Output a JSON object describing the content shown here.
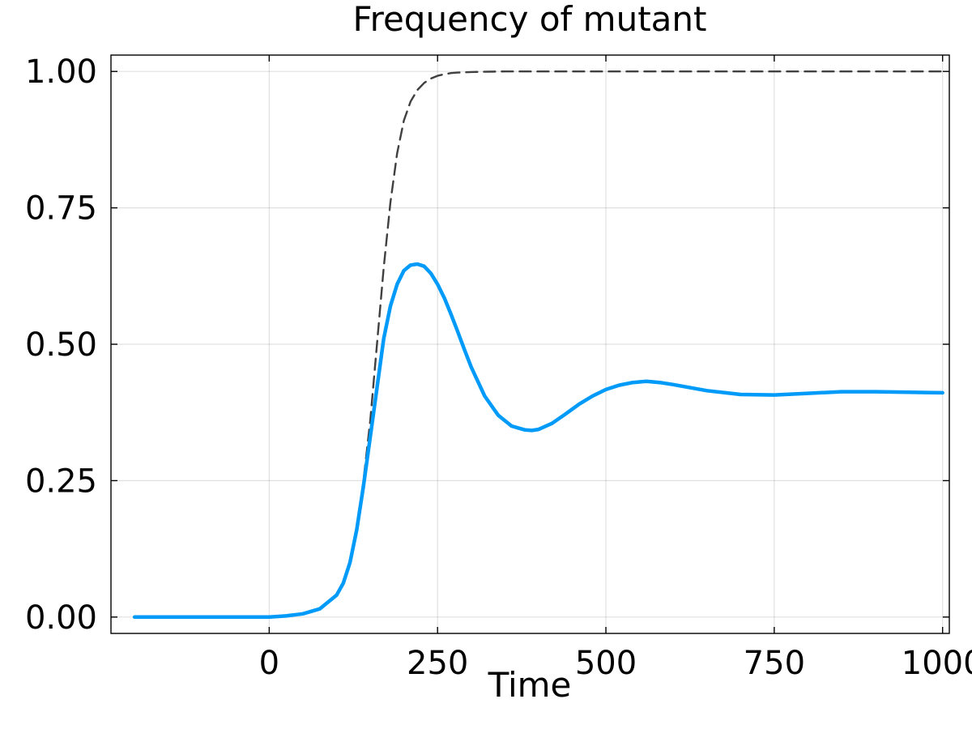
{
  "chart_data": {
    "type": "line",
    "title": "Frequency of mutant",
    "xlabel": "Time",
    "ylabel": "",
    "xlim": [
      -235,
      1010
    ],
    "ylim": [
      -0.03,
      1.03
    ],
    "xticks": [
      0,
      250,
      500,
      750,
      1000
    ],
    "xtick_labels": [
      "0",
      "250",
      "500",
      "750",
      "1000"
    ],
    "yticks": [
      0,
      0.25,
      0.5,
      0.75,
      1.0
    ],
    "ytick_labels": [
      "0.00",
      "0.25",
      "0.50",
      "0.75",
      "1.00"
    ],
    "grid": true,
    "legend": "none",
    "series": [
      {
        "color": "#009af9",
        "style": "solid",
        "x": [
          -200,
          -150,
          -100,
          -50,
          0,
          25,
          50,
          75,
          100,
          110,
          120,
          130,
          140,
          150,
          160,
          170,
          180,
          190,
          200,
          210,
          220,
          230,
          240,
          250,
          260,
          270,
          280,
          290,
          300,
          320,
          340,
          360,
          380,
          390,
          400,
          420,
          440,
          460,
          480,
          500,
          520,
          540,
          560,
          580,
          600,
          650,
          700,
          750,
          800,
          850,
          900,
          950,
          1000
        ],
        "y": [
          0.0,
          0.0,
          0.0,
          0.0,
          0.0,
          0.002,
          0.006,
          0.015,
          0.04,
          0.062,
          0.1,
          0.16,
          0.24,
          0.33,
          0.42,
          0.51,
          0.57,
          0.61,
          0.635,
          0.645,
          0.647,
          0.643,
          0.63,
          0.61,
          0.585,
          0.555,
          0.523,
          0.49,
          0.458,
          0.405,
          0.37,
          0.35,
          0.343,
          0.342,
          0.344,
          0.355,
          0.372,
          0.39,
          0.405,
          0.417,
          0.425,
          0.43,
          0.432,
          0.43,
          0.426,
          0.415,
          0.408,
          0.407,
          0.41,
          0.413,
          0.413,
          0.412,
          0.411
        ]
      },
      {
        "color": "#404040",
        "style": "dashed",
        "x": [
          0,
          25,
          50,
          75,
          100,
          110,
          120,
          130,
          140,
          150,
          160,
          170,
          180,
          190,
          200,
          210,
          220,
          230,
          240,
          250,
          260,
          270,
          280,
          300,
          325,
          350,
          400,
          500,
          600,
          700,
          800,
          900,
          1000
        ],
        "y": [
          0.0,
          0.002,
          0.006,
          0.015,
          0.04,
          0.062,
          0.1,
          0.16,
          0.25,
          0.36,
          0.5,
          0.64,
          0.76,
          0.85,
          0.91,
          0.945,
          0.966,
          0.979,
          0.987,
          0.992,
          0.995,
          0.997,
          0.998,
          0.999,
          0.9995,
          1.0,
          1.0,
          1.0,
          1.0,
          1.0,
          1.0,
          1.0,
          1.0
        ]
      }
    ]
  }
}
